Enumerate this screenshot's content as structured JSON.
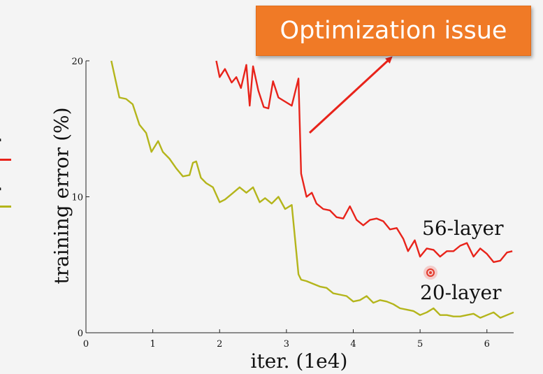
{
  "callout": {
    "text": "Optimization issue"
  },
  "left_fragment": {
    "legend_1": "r",
    "legend_2": "r"
  },
  "colors": {
    "red_series": "#e8231a",
    "yellow_series": "#b4b51b",
    "callout_bg": "#f07a26",
    "arrow": "#e8231a",
    "cursor": "#e43a2c"
  },
  "chart_data": {
    "type": "line",
    "xlabel": "iter. (1e4)",
    "ylabel": "training error (%)",
    "xlim": [
      0,
      6.4
    ],
    "ylim": [
      0,
      20
    ],
    "xticks": [
      0,
      1,
      2,
      3,
      4,
      5,
      6
    ],
    "yticks": [
      0,
      10,
      20
    ],
    "grid": false,
    "series": [
      {
        "name": "56-layer",
        "color": "#e8231a",
        "x": [
          1.95,
          2.0,
          2.08,
          2.18,
          2.25,
          2.32,
          2.4,
          2.45,
          2.5,
          2.58,
          2.66,
          2.73,
          2.8,
          2.88,
          2.98,
          3.08,
          3.18,
          3.22,
          3.3,
          3.38,
          3.45,
          3.55,
          3.65,
          3.75,
          3.85,
          3.95,
          4.05,
          4.15,
          4.25,
          4.35,
          4.45,
          4.55,
          4.65,
          4.75,
          4.82,
          4.92,
          5.0,
          5.1,
          5.2,
          5.3,
          5.4,
          5.5,
          5.6,
          5.7,
          5.8,
          5.9,
          6.0,
          6.1,
          6.2,
          6.3,
          6.38
        ],
        "y": [
          20.0,
          18.8,
          19.4,
          18.4,
          18.8,
          18.0,
          19.7,
          16.7,
          19.6,
          17.8,
          16.6,
          16.5,
          18.5,
          17.3,
          17.0,
          16.7,
          18.7,
          11.7,
          10.0,
          10.3,
          9.5,
          9.1,
          9.0,
          8.5,
          8.4,
          9.3,
          8.3,
          7.9,
          8.3,
          8.4,
          8.2,
          7.6,
          7.7,
          6.9,
          6.0,
          6.8,
          5.6,
          6.2,
          6.1,
          5.6,
          6.0,
          6.0,
          6.4,
          6.6,
          5.6,
          6.2,
          5.8,
          5.2,
          5.3,
          5.9,
          6.0
        ]
      },
      {
        "name": "20-layer",
        "color": "#b4b51b",
        "x": [
          0.38,
          0.5,
          0.6,
          0.7,
          0.8,
          0.9,
          0.98,
          1.08,
          1.15,
          1.25,
          1.35,
          1.45,
          1.55,
          1.6,
          1.65,
          1.72,
          1.8,
          1.9,
          2.0,
          2.08,
          2.18,
          2.3,
          2.4,
          2.5,
          2.6,
          2.68,
          2.78,
          2.88,
          2.98,
          3.08,
          3.18,
          3.22,
          3.3,
          3.4,
          3.5,
          3.6,
          3.7,
          3.8,
          3.9,
          4.0,
          4.1,
          4.2,
          4.3,
          4.4,
          4.5,
          4.6,
          4.7,
          4.8,
          4.9,
          5.0,
          5.1,
          5.2,
          5.3,
          5.4,
          5.5,
          5.6,
          5.7,
          5.8,
          5.9,
          6.0,
          6.1,
          6.2,
          6.3,
          6.4
        ],
        "y": [
          20.0,
          17.3,
          17.2,
          16.8,
          15.3,
          14.7,
          13.3,
          14.1,
          13.3,
          12.8,
          12.1,
          11.5,
          11.6,
          12.5,
          12.6,
          11.4,
          11.0,
          10.7,
          9.6,
          9.8,
          10.2,
          10.7,
          10.3,
          10.7,
          9.6,
          9.9,
          9.5,
          10.0,
          9.1,
          9.4,
          4.3,
          3.9,
          3.8,
          3.6,
          3.4,
          3.3,
          2.9,
          2.8,
          2.7,
          2.3,
          2.4,
          2.7,
          2.2,
          2.4,
          2.3,
          2.1,
          1.8,
          1.7,
          1.6,
          1.3,
          1.5,
          1.8,
          1.3,
          1.3,
          1.2,
          1.2,
          1.3,
          1.4,
          1.1,
          1.3,
          1.5,
          1.1,
          1.3,
          1.5
        ]
      }
    ]
  }
}
